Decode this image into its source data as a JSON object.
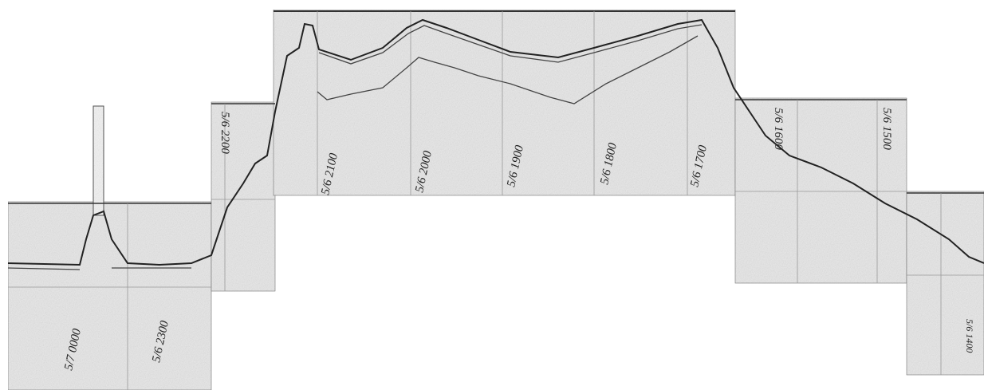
{
  "labels": [
    "5/7 0000",
    "5/6 2300",
    "5/6 2200",
    "5/6 2100",
    "5/6 2000",
    "5/6 1900",
    "5/6 1800",
    "5/6 1700",
    "5/6 1600",
    "5/6 1500",
    "5/6 1400"
  ]
}
